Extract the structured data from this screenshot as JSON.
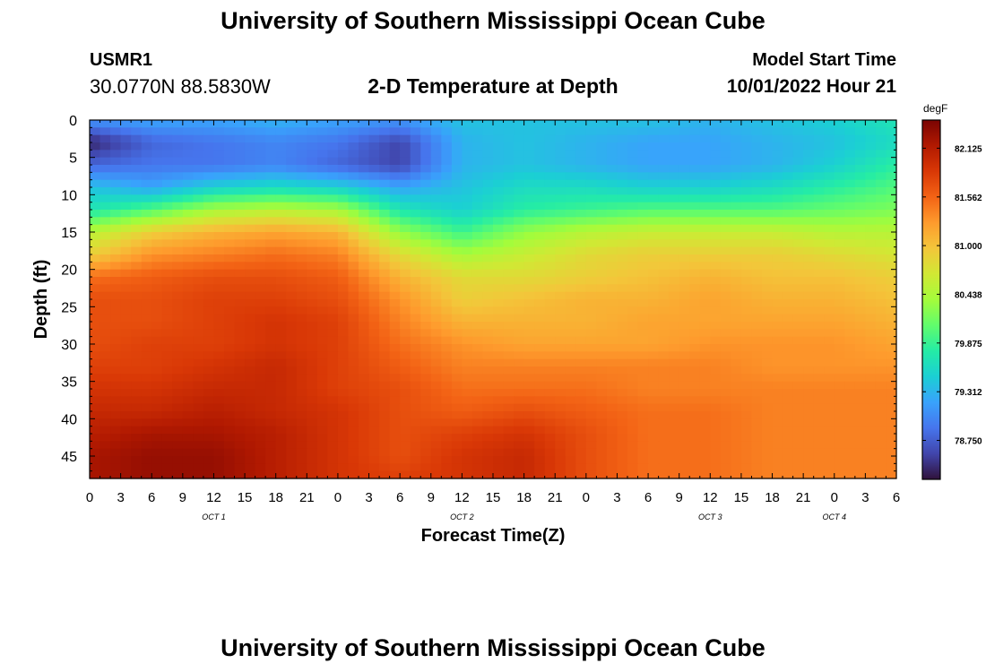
{
  "page": {
    "title_top": "University of Southern Mississippi Ocean Cube",
    "title_bottom": "University of Southern Mississippi Ocean Cube",
    "station_id": "USMR1",
    "coordinates": "30.0770N  88.5830W",
    "subtitle": "2-D Temperature at Depth",
    "model_start_label": "Model Start Time",
    "model_start_value": "10/01/2022 Hour 21"
  },
  "colors": {
    "colormap": [
      "#30123b",
      "#4145ab",
      "#4675ed",
      "#39a2fc",
      "#1bcfd4",
      "#24eca6",
      "#61fc6c",
      "#a4fc3b",
      "#d1e834",
      "#f3c63a",
      "#fe9b2d",
      "#f36315",
      "#d93806",
      "#b11901",
      "#7a0403"
    ]
  },
  "chart_data": {
    "type": "heatmap",
    "title": "2-D Temperature at Depth",
    "xlabel": "Forecast Time(Z)",
    "ylabel": "Depth (ft)",
    "x_tick_labels": [
      "0",
      "3",
      "6",
      "9",
      "12",
      "15",
      "18",
      "21",
      "0",
      "3",
      "6",
      "9",
      "12",
      "15",
      "18",
      "21",
      "0",
      "3",
      "6",
      "9",
      "12",
      "15",
      "18",
      "21",
      "0",
      "3",
      "6"
    ],
    "date_labels": [
      "OCT 1",
      "OCT 2",
      "OCT 3",
      "OCT 4"
    ],
    "xlim_hours": [
      0,
      78
    ],
    "ylim_ft": [
      0,
      48
    ],
    "y_ticks": [
      0,
      5,
      10,
      15,
      20,
      25,
      30,
      35,
      40,
      45
    ],
    "colorbar": {
      "unit": "degF",
      "range": [
        78.3,
        82.45
      ],
      "tick_values": [
        78.75,
        79.312,
        79.875,
        80.438,
        81.0,
        81.562,
        82.125
      ],
      "tick_labels": [
        "78.750",
        "79.312",
        "79.875",
        "80.438",
        "81.000",
        "81.562",
        "82.125"
      ]
    },
    "depths_ft": [
      0,
      3,
      6,
      9,
      12,
      15,
      18,
      21,
      24,
      27,
      30,
      33,
      36,
      39,
      42,
      45,
      48
    ],
    "times_hours": [
      0,
      6,
      12,
      18,
      24,
      30,
      36,
      42,
      48,
      54,
      60,
      66,
      72,
      78
    ],
    "values_degF": [
      [
        79.1,
        79.2,
        79.2,
        79.3,
        79.2,
        79.1,
        79.4,
        79.4,
        79.4,
        79.4,
        79.3,
        79.4,
        79.5,
        79.7
      ],
      [
        78.4,
        78.8,
        78.9,
        79.0,
        78.9,
        78.6,
        79.3,
        79.4,
        79.3,
        79.2,
        79.2,
        79.3,
        79.4,
        79.6
      ],
      [
        78.8,
        78.9,
        78.9,
        79.0,
        78.8,
        78.6,
        79.3,
        79.4,
        79.3,
        79.2,
        79.2,
        79.3,
        79.5,
        79.8
      ],
      [
        79.4,
        79.2,
        79.5,
        79.6,
        79.5,
        79.2,
        79.4,
        79.6,
        79.6,
        79.5,
        79.5,
        79.6,
        79.8,
        80.0
      ],
      [
        79.7,
        80.0,
        80.4,
        80.5,
        80.4,
        79.7,
        79.5,
        79.8,
        79.9,
        80.0,
        80.0,
        80.0,
        80.1,
        80.2
      ],
      [
        80.5,
        80.9,
        81.1,
        81.2,
        81.1,
        80.3,
        79.9,
        80.3,
        80.5,
        80.6,
        80.6,
        80.6,
        80.5,
        80.5
      ],
      [
        80.9,
        81.3,
        81.4,
        81.5,
        81.4,
        80.8,
        80.4,
        80.6,
        80.8,
        80.9,
        80.9,
        80.9,
        80.8,
        80.7
      ],
      [
        81.5,
        81.6,
        81.7,
        81.7,
        81.6,
        81.1,
        80.8,
        80.8,
        80.9,
        81.0,
        81.1,
        81.0,
        81.0,
        80.9
      ],
      [
        81.7,
        81.7,
        81.8,
        81.8,
        81.7,
        81.3,
        80.9,
        81.0,
        81.1,
        81.1,
        81.2,
        81.1,
        81.1,
        81.0
      ],
      [
        81.7,
        81.7,
        81.8,
        81.9,
        81.8,
        81.4,
        81.1,
        81.1,
        81.1,
        81.2,
        81.2,
        81.2,
        81.2,
        81.1
      ],
      [
        81.7,
        81.8,
        81.8,
        81.9,
        81.8,
        81.5,
        81.3,
        81.2,
        81.2,
        81.2,
        81.3,
        81.3,
        81.3,
        81.2
      ],
      [
        81.8,
        81.8,
        81.9,
        82.0,
        81.8,
        81.6,
        81.4,
        81.4,
        81.4,
        81.4,
        81.4,
        81.3,
        81.3,
        81.3
      ],
      [
        81.9,
        81.9,
        82.0,
        82.0,
        81.8,
        81.7,
        81.5,
        81.5,
        81.5,
        81.4,
        81.4,
        81.4,
        81.4,
        81.4
      ],
      [
        82.0,
        82.0,
        82.1,
        82.0,
        81.9,
        81.7,
        81.6,
        81.7,
        81.6,
        81.5,
        81.5,
        81.4,
        81.4,
        81.4
      ],
      [
        82.1,
        82.2,
        82.2,
        82.1,
        81.9,
        81.7,
        81.8,
        81.9,
        81.7,
        81.5,
        81.5,
        81.4,
        81.4,
        81.4
      ],
      [
        82.2,
        82.3,
        82.3,
        82.1,
        81.9,
        81.7,
        81.9,
        82.0,
        81.7,
        81.5,
        81.5,
        81.4,
        81.4,
        81.4
      ],
      [
        82.2,
        82.3,
        82.3,
        82.1,
        81.9,
        81.8,
        81.9,
        82.0,
        81.7,
        81.5,
        81.5,
        81.4,
        81.4,
        81.4
      ]
    ]
  }
}
